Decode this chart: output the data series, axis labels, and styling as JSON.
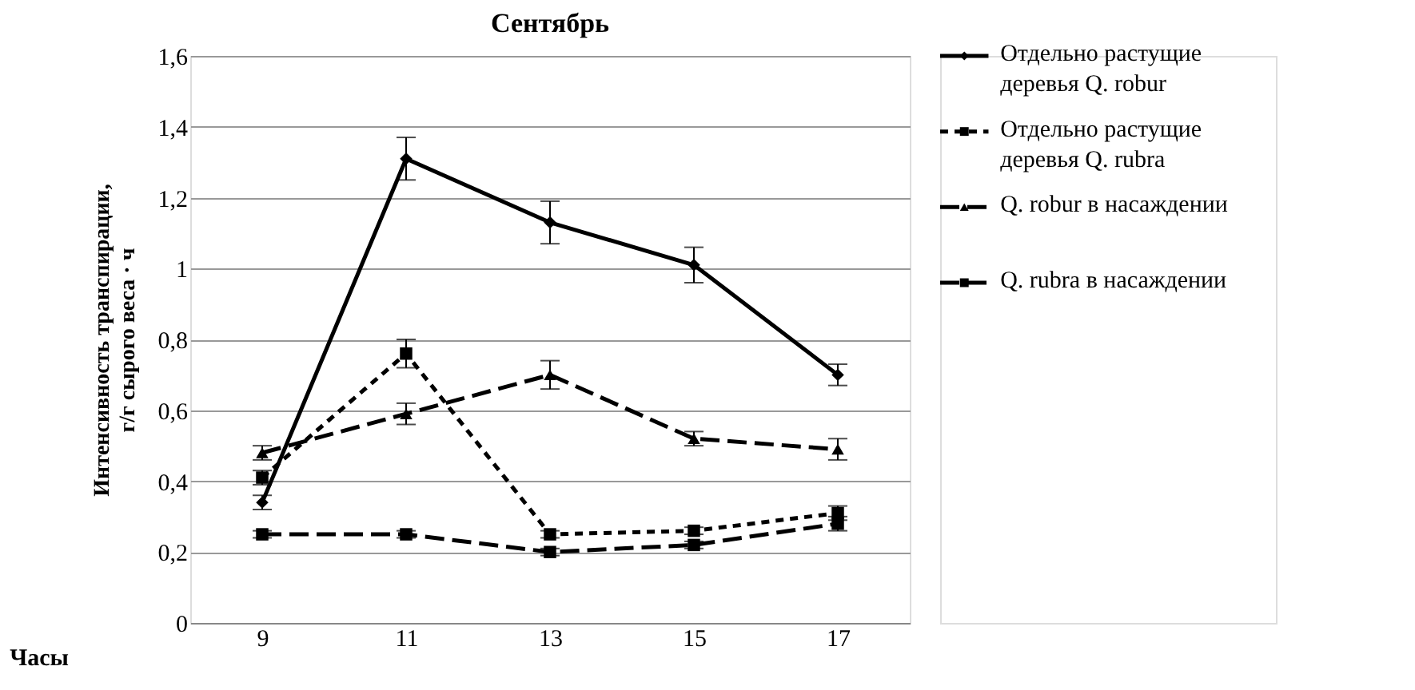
{
  "chart_data": {
    "type": "line",
    "title": "Сентябрь",
    "xlabel": "Часы",
    "ylabel": "Интенсивность транспирации, г/г сырого веса · ч",
    "categories": [
      "9",
      "11",
      "13",
      "15",
      "17"
    ],
    "series": [
      {
        "name": "Отдельно растущие деревья Q. robur",
        "color": "#000000",
        "marker": "diamond",
        "line_style": "solid",
        "values": [
          0.34,
          1.31,
          1.13,
          1.01,
          0.7
        ],
        "errors": [
          0.02,
          0.06,
          0.06,
          0.05,
          0.03
        ]
      },
      {
        "name": "Отдельно растущие деревья Q. rubra",
        "color": "#000000",
        "marker": "square",
        "line_style": "dotted",
        "values": [
          0.41,
          0.76,
          0.25,
          0.26,
          0.31
        ],
        "errors": [
          0.02,
          0.04,
          0.01,
          0.01,
          0.02
        ]
      },
      {
        "name": "Q. robur в насаждении",
        "color": "#000000",
        "marker": "triangle",
        "line_style": "dashed",
        "values": [
          0.48,
          0.59,
          0.7,
          0.52,
          0.49
        ],
        "errors": [
          0.02,
          0.03,
          0.04,
          0.02,
          0.03
        ]
      },
      {
        "name": "Q. rubra в насаждении",
        "color": "#000000",
        "marker": "square",
        "line_style": "dashed",
        "values": [
          0.25,
          0.25,
          0.2,
          0.22,
          0.28
        ],
        "errors": [
          0.01,
          0.01,
          0.01,
          0.01,
          0.02
        ]
      }
    ],
    "ylim": [
      0,
      1.6
    ],
    "yticks": [
      0,
      {
        "value": 0.2,
        "label": "0,2"
      },
      {
        "value": 0.4,
        "label": "0,4"
      },
      {
        "value": 0.6,
        "label": "0,6"
      },
      {
        "value": 0.8,
        "label": "0,8"
      },
      1,
      {
        "value": 1.2,
        "label": "1,2"
      },
      {
        "value": 1.4,
        "label": "1,4"
      },
      {
        "value": 1.6,
        "label": "1,6"
      }
    ],
    "grid": "y",
    "legend": "right"
  }
}
